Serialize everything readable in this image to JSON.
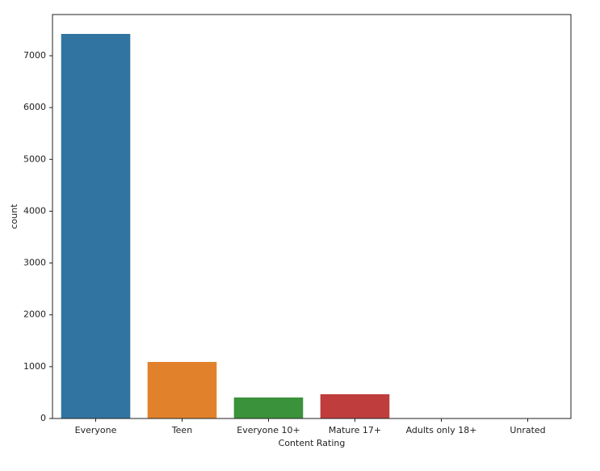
{
  "chart_data": {
    "type": "bar",
    "xlabel": "Content Rating",
    "ylabel": "count",
    "categories": [
      "Everyone",
      "Teen",
      "Everyone 10+",
      "Mature 17+",
      "Adults only 18+",
      "Unrated"
    ],
    "values": [
      7421,
      1091,
      405,
      468,
      3,
      2
    ],
    "colors": [
      "#3274a1",
      "#e1812c",
      "#3a923a",
      "#c03d3e",
      "#9372b2",
      "#845b53"
    ],
    "ylim": [
      0,
      7795
    ],
    "yticks": [
      0,
      1000,
      2000,
      3000,
      4000,
      5000,
      6000,
      7000
    ],
    "grid": false
  }
}
